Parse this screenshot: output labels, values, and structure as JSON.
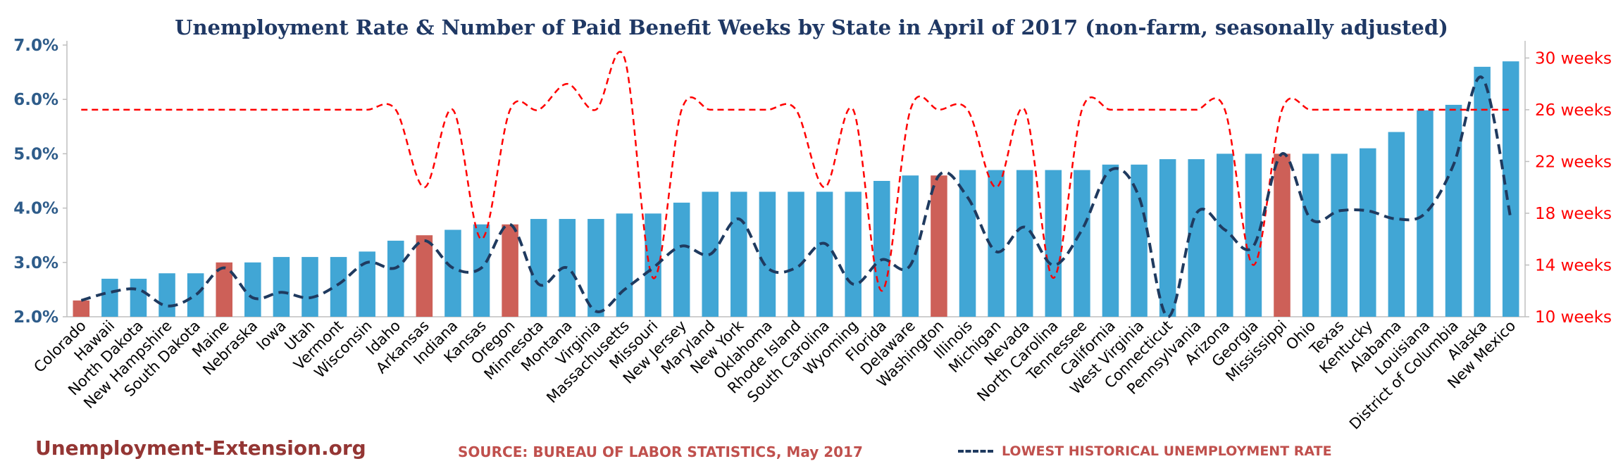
{
  "header": {
    "title": "Unemployment Rate & Number of Paid Benefit Weeks by State in April of 2017 (non-farm, seasonally adjusted)"
  },
  "footer": {
    "brand": "Unemployment-Extension.org",
    "source": "SOURCE: BUREAU OF LABOR STATISTICS, May 2017",
    "legend_label": "LOWEST HISTORICAL UNEMPLOYMENT RATE"
  },
  "chart_data": {
    "type": "bar",
    "title": "Unemployment Rate & Number of Paid Benefit Weeks by State in April of 2017 (non-farm, seasonally adjusted)",
    "categories": [
      "Colorado",
      "Hawaii",
      "North Dakota",
      "New Hampshire",
      "South Dakota",
      "Maine",
      "Nebraska",
      "Iowa",
      "Utah",
      "Vermont",
      "Wisconsin",
      "Idaho",
      "Arkansas",
      "Indiana",
      "Kansas",
      "Oregon",
      "Minnesota",
      "Montana",
      "Virginia",
      "Massachusetts",
      "Missouri",
      "New Jersey",
      "Maryland",
      "New York",
      "Oklahoma",
      "Rhode Island",
      "South Carolina",
      "Wyoming",
      "Florida",
      "Delaware",
      "Washington",
      "Illinois",
      "Michigan",
      "Nevada",
      "North Carolina",
      "Tennessee",
      "California",
      "West Virginia",
      "Connecticut",
      "Pennsylvania",
      "Arizona",
      "Georgia",
      "Mississippi",
      "Ohio",
      "Texas",
      "Kentucky",
      "Alabama",
      "Louisiana",
      "District of Columbia",
      "Alaska",
      "New Mexico"
    ],
    "series": [
      {
        "name": "",
        "kind": "bar",
        "axis": "left",
        "values": [
          2.3,
          2.7,
          2.7,
          2.8,
          2.8,
          3.0,
          3.0,
          3.1,
          3.1,
          3.1,
          3.2,
          3.4,
          3.5,
          3.6,
          3.7,
          3.7,
          3.8,
          3.8,
          3.8,
          3.9,
          3.9,
          4.1,
          4.3,
          4.3,
          4.3,
          4.3,
          4.3,
          4.3,
          4.5,
          4.6,
          4.6,
          4.7,
          4.7,
          4.7,
          4.7,
          4.7,
          4.8,
          4.8,
          4.9,
          4.9,
          5.0,
          5.0,
          5.0,
          5.0,
          5.0,
          5.1,
          5.4,
          5.8,
          5.9,
          6.6,
          6.7
        ],
        "highlighted": [
          "Colorado",
          "Maine",
          "Arkansas",
          "Oregon",
          "Washington",
          "Mississippi"
        ]
      },
      {
        "name": "LOWEST HISTORICAL UNEMPLOYMENT RATE",
        "kind": "line",
        "axis": "left",
        "values": [
          2.3,
          2.45,
          2.5,
          2.2,
          2.4,
          2.9,
          2.35,
          2.45,
          2.35,
          2.6,
          3.0,
          2.9,
          3.4,
          2.9,
          2.9,
          3.7,
          2.6,
          2.9,
          2.1,
          2.5,
          2.9,
          3.3,
          3.15,
          3.8,
          2.9,
          2.9,
          3.35,
          2.6,
          3.05,
          2.95,
          4.6,
          4.2,
          3.2,
          3.65,
          2.95,
          3.6,
          4.7,
          4.2,
          2.0,
          3.9,
          3.6,
          3.3,
          5.0,
          3.8,
          3.95,
          3.95,
          3.8,
          3.9,
          4.8,
          6.4,
          3.8
        ]
      },
      {
        "name": "",
        "kind": "line",
        "axis": "right",
        "values": [
          26,
          26,
          26,
          26,
          26,
          26,
          26,
          26,
          26,
          26,
          26,
          26,
          20,
          26,
          16,
          26,
          26,
          28,
          26,
          30,
          13,
          26,
          26,
          26,
          26,
          26,
          20,
          26,
          12,
          26,
          26,
          26,
          20,
          26,
          13,
          26,
          26,
          26,
          26,
          26,
          26,
          14,
          26,
          26,
          26,
          26,
          26,
          26,
          26,
          26,
          26
        ]
      }
    ],
    "y_left": {
      "min": 2.0,
      "max": 7.0,
      "ticks": [
        "2.0%",
        "3.0%",
        "4.0%",
        "5.0%",
        "6.0%",
        "7.0%"
      ]
    },
    "y_right": {
      "min": 10,
      "max": 31,
      "ticks": [
        "10 weeks",
        "14 weeks",
        "18 weeks",
        "22 weeks",
        "26 weeks",
        "30 weeks"
      ],
      "tick_values": [
        10,
        14,
        18,
        22,
        26,
        30
      ]
    },
    "grid": false,
    "legend_position": "bottom",
    "colors": {
      "bar": "#41a6d5",
      "bar_highlight": "#cd6058",
      "line_lowest": "#1f3a5f",
      "line_weeks": "#ff0000",
      "left_axis_text": "#2e5c8a",
      "right_axis_text": "#ff0000"
    }
  }
}
